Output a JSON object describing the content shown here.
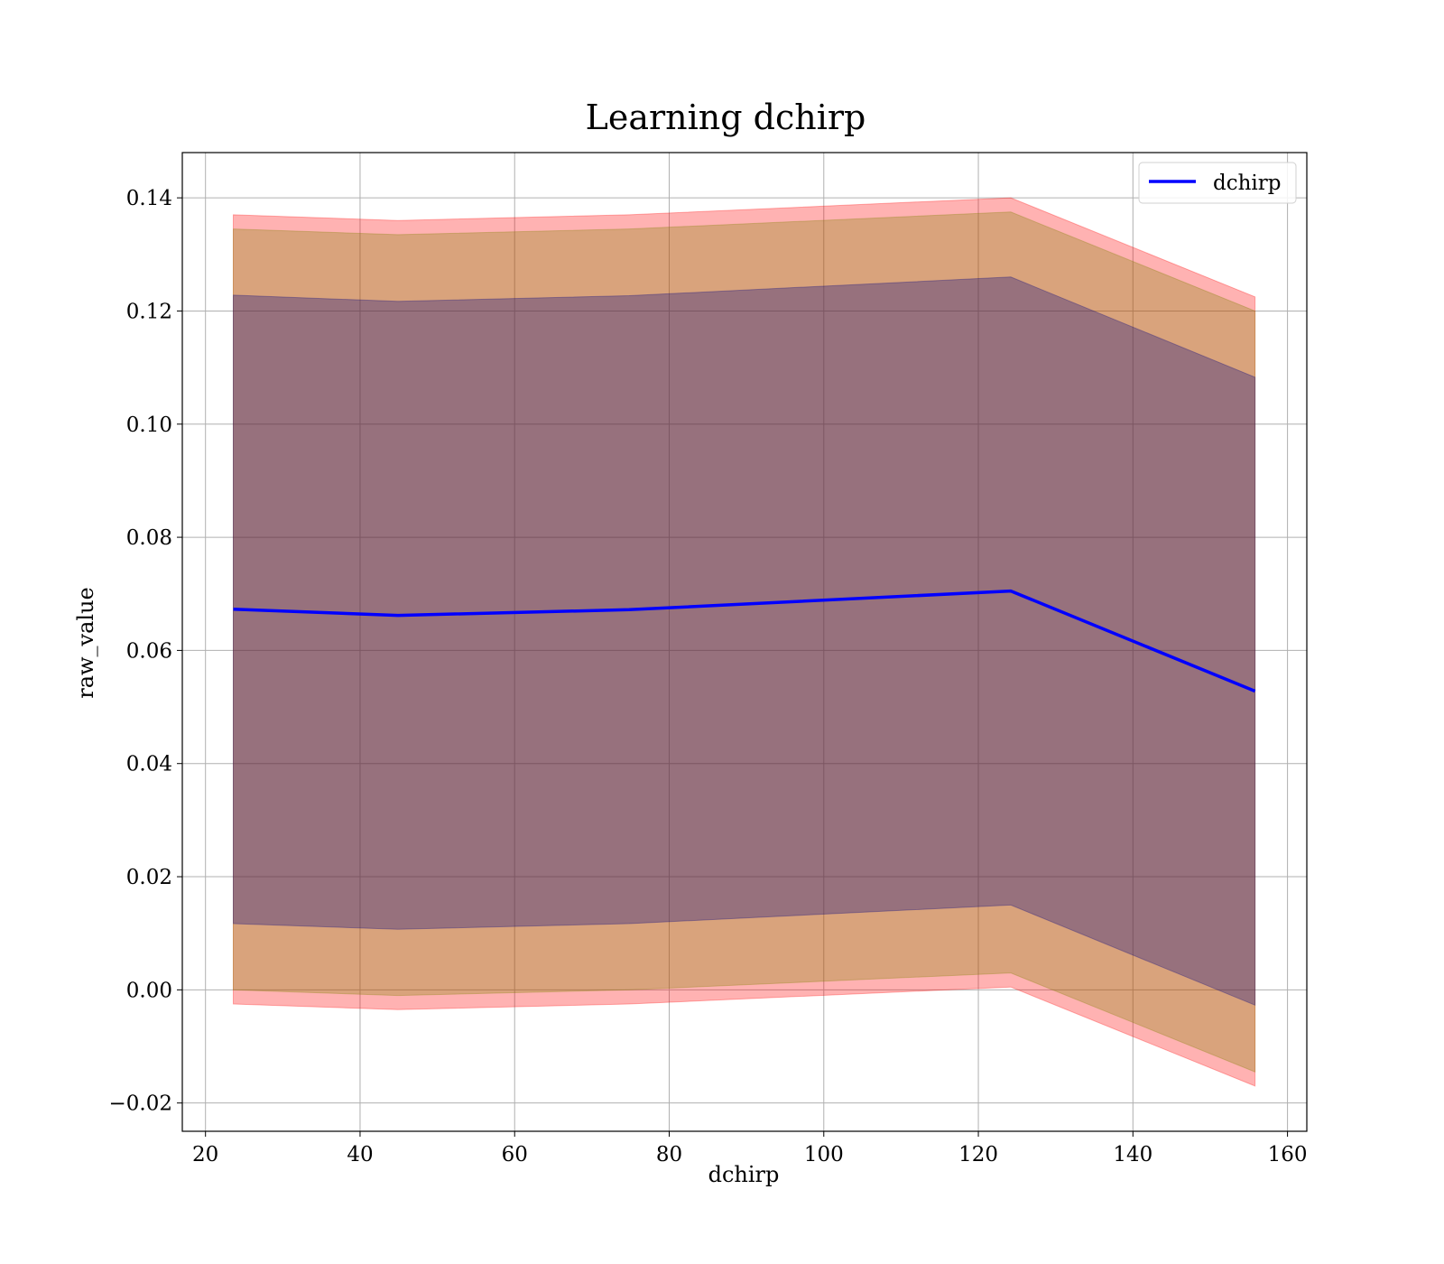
{
  "chart_data": {
    "type": "line",
    "title": "Learning dchirp",
    "xlabel": "dchirp",
    "ylabel": "raw_value",
    "xlim": [
      17,
      162.5
    ],
    "ylim": [
      -0.025,
      0.148
    ],
    "xticks": [
      20,
      40,
      60,
      80,
      100,
      120,
      140,
      160
    ],
    "yticks": [
      -0.02,
      0.0,
      0.02,
      0.04,
      0.06,
      0.08,
      0.1,
      0.12,
      0.14
    ],
    "ytick_labels": [
      "−0.02",
      "0.00",
      "0.02",
      "0.04",
      "0.06",
      "0.08",
      "0.10",
      "0.12",
      "0.14"
    ],
    "grid": true,
    "legend_position": "top-right",
    "x": [
      23.6,
      44.9,
      74.8,
      124.2,
      155.8
    ],
    "series": [
      {
        "name": "dchirp",
        "color": "#0000ff",
        "values": [
          0.0673,
          0.0662,
          0.0672,
          0.0705,
          0.0528
        ]
      }
    ],
    "bands": [
      {
        "color": "#ff0000",
        "opacity": 0.3,
        "lower": [
          -0.0025,
          -0.0035,
          -0.0025,
          0.0005,
          -0.017
        ],
        "upper": [
          0.137,
          0.136,
          0.137,
          0.14,
          0.1225
        ]
      },
      {
        "color": "#808000",
        "opacity": 0.3,
        "lower": [
          0.0,
          -0.001,
          0.0,
          0.003,
          -0.0145
        ],
        "upper": [
          0.1345,
          0.1335,
          0.1345,
          0.1375,
          0.12
        ]
      },
      {
        "color": "#000080",
        "opacity": 0.3,
        "lower": [
          0.0117,
          0.0107,
          0.0117,
          0.015,
          -0.0027
        ],
        "upper": [
          0.1228,
          0.1217,
          0.1227,
          0.126,
          0.1083
        ]
      }
    ]
  }
}
